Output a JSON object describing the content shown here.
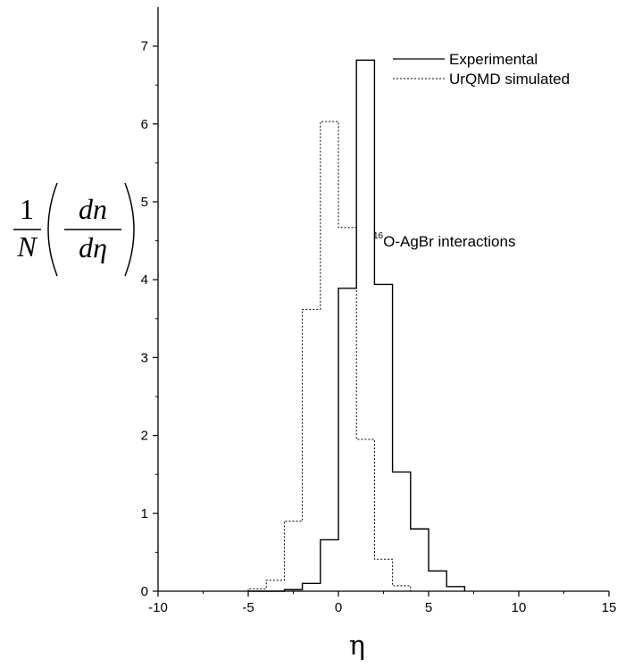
{
  "chart_data": {
    "type": "line",
    "title": "",
    "xlabel": "η",
    "ylabel": {
      "prefix_numerator": "1",
      "prefix_denominator": "N",
      "inner_numerator": "dn",
      "inner_denominator": "dη"
    },
    "xlim": [
      -10,
      15
    ],
    "ylim": [
      0,
      7.5
    ],
    "x_ticks": [
      -10,
      -5,
      0,
      5,
      10,
      15
    ],
    "y_ticks": [
      0,
      1,
      2,
      3,
      4,
      5,
      6,
      7
    ],
    "grid": false,
    "legend_position": "top-right",
    "bin_edges": [
      -5,
      -4,
      -3,
      -2,
      -1,
      0,
      1,
      2,
      3,
      4,
      5,
      6,
      7
    ],
    "series": [
      {
        "name": "Experimental",
        "style": "solid",
        "values": [
          0.0,
          0.0,
          0.02,
          0.1,
          0.66,
          3.89,
          6.82,
          3.94,
          1.53,
          0.8,
          0.26,
          0.06
        ]
      },
      {
        "name": "UrQMD simulated",
        "style": "dotted",
        "values": [
          0.03,
          0.14,
          0.9,
          3.62,
          6.03,
          4.67,
          1.95,
          0.41,
          0.07,
          0.0,
          0.0,
          0.0
        ]
      }
    ],
    "annotation": {
      "superscript": "16",
      "text": "O-AgBr interactions"
    }
  }
}
